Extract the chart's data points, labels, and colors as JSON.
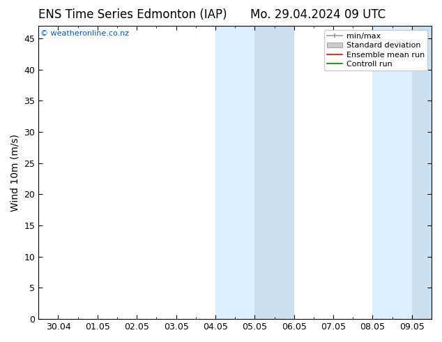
{
  "title_left": "ENS Time Series Edmonton (IAP)",
  "title_right": "Mo. 29.04.2024 09 UTC",
  "ylabel": "Wind 10m (m/s)",
  "ylim": [
    0,
    47
  ],
  "yticks": [
    0,
    5,
    10,
    15,
    20,
    25,
    30,
    35,
    40,
    45
  ],
  "xtick_labels": [
    "30.04",
    "01.05",
    "02.05",
    "03.05",
    "04.05",
    "05.05",
    "06.05",
    "07.05",
    "08.05",
    "09.05"
  ],
  "n_xticks": 10,
  "shaded_bands": [
    {
      "xstart": 4,
      "xend": 5,
      "color": "#ddeeff"
    },
    {
      "xstart": 5,
      "xend": 6,
      "color": "#cce0f0"
    },
    {
      "xstart": 8,
      "xend": 9,
      "color": "#ddeeff"
    },
    {
      "xstart": 9,
      "xend": 10,
      "color": "#cce0f0"
    }
  ],
  "legend_entries": [
    {
      "label": "min/max",
      "color": "#999999"
    },
    {
      "label": "Standard deviation",
      "color": "#cccccc"
    },
    {
      "label": "Ensemble mean run",
      "color": "#ff0000"
    },
    {
      "label": "Controll run",
      "color": "#008000"
    }
  ],
  "watermark_text": "© weatheronline.co.nz",
  "watermark_color": "#0055cc",
  "background_color": "#ffffff",
  "plot_bg_color": "#ffffff",
  "spine_color": "#000000",
  "tick_color": "#000000",
  "title_fontsize": 12,
  "ylabel_fontsize": 10,
  "tick_fontsize": 9,
  "legend_fontsize": 8,
  "watermark_fontsize": 8
}
